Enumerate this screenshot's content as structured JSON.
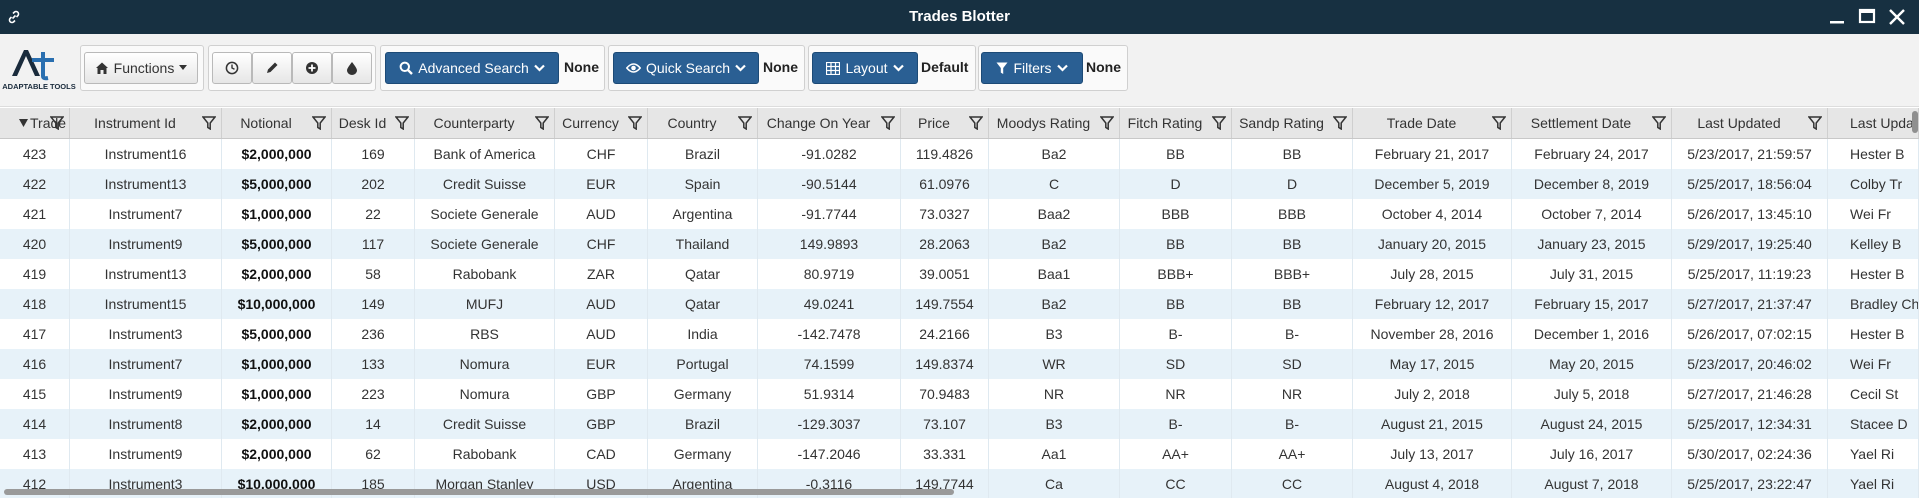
{
  "window": {
    "title": "Trades Blotter"
  },
  "toolbar": {
    "logo_text": "ADAPTABLE TOOLS",
    "functions_label": "Functions",
    "advanced_search_label": "Advanced Search",
    "advanced_search_value": "None",
    "quick_search_label": "Quick Search",
    "quick_search_value": "None",
    "layout_label": "Layout",
    "layout_value": "Default",
    "filters_label": "Filters",
    "filters_value": "None",
    "accent_color": "#2a5f93"
  },
  "grid": {
    "columns": [
      {
        "key": "trade_id",
        "label": "Trade Id",
        "sorted": "desc"
      },
      {
        "key": "instrument_id",
        "label": "Instrument Id"
      },
      {
        "key": "notional",
        "label": "Notional"
      },
      {
        "key": "desk_id",
        "label": "Desk Id"
      },
      {
        "key": "counterparty",
        "label": "Counterparty"
      },
      {
        "key": "currency",
        "label": "Currency"
      },
      {
        "key": "country",
        "label": "Country"
      },
      {
        "key": "change_on_year",
        "label": "Change On Year"
      },
      {
        "key": "price",
        "label": "Price"
      },
      {
        "key": "moodys_rating",
        "label": "Moodys Rating"
      },
      {
        "key": "fitch_rating",
        "label": "Fitch Rating"
      },
      {
        "key": "sandp_rating",
        "label": "Sandp Rating"
      },
      {
        "key": "trade_date",
        "label": "Trade Date"
      },
      {
        "key": "settlement_date",
        "label": "Settlement Date"
      },
      {
        "key": "last_updated",
        "label": "Last Updated"
      },
      {
        "key": "last_updated_by",
        "label": "Last Upda"
      }
    ],
    "rows": [
      [
        "423",
        "Instrument16",
        "$2,000,000",
        "169",
        "Bank of America",
        "CHF",
        "Brazil",
        "-91.0282",
        "119.4826",
        "Ba2",
        "BB",
        "BB",
        "February 21, 2017",
        "February 24, 2017",
        "5/23/2017, 21:59:57",
        "Hester B"
      ],
      [
        "422",
        "Instrument13",
        "$5,000,000",
        "202",
        "Credit Suisse",
        "EUR",
        "Spain",
        "-90.5144",
        "61.0976",
        "C",
        "D",
        "D",
        "December 5, 2019",
        "December 8, 2019",
        "5/25/2017, 18:56:04",
        "Colby Tr"
      ],
      [
        "421",
        "Instrument7",
        "$1,000,000",
        "22",
        "Societe Generale",
        "AUD",
        "Argentina",
        "-91.7744",
        "73.0327",
        "Baa2",
        "BBB",
        "BBB",
        "October 4, 2014",
        "October 7, 2014",
        "5/26/2017, 13:45:10",
        "Wei Fr"
      ],
      [
        "420",
        "Instrument9",
        "$5,000,000",
        "117",
        "Societe Generale",
        "CHF",
        "Thailand",
        "149.9893",
        "28.2063",
        "Ba2",
        "BB",
        "BB",
        "January 20, 2015",
        "January 23, 2015",
        "5/29/2017, 19:25:40",
        "Kelley B"
      ],
      [
        "419",
        "Instrument13",
        "$2,000,000",
        "58",
        "Rabobank",
        "ZAR",
        "Qatar",
        "80.9719",
        "39.0051",
        "Baa1",
        "BBB+",
        "BBB+",
        "July 28, 2015",
        "July 31, 2015",
        "5/25/2017, 11:19:23",
        "Hester B"
      ],
      [
        "418",
        "Instrument15",
        "$10,000,000",
        "149",
        "MUFJ",
        "AUD",
        "Qatar",
        "49.0241",
        "149.7554",
        "Ba2",
        "BB",
        "BB",
        "February 12, 2017",
        "February 15, 2017",
        "5/27/2017, 21:37:47",
        "Bradley Ch"
      ],
      [
        "417",
        "Instrument3",
        "$5,000,000",
        "236",
        "RBS",
        "AUD",
        "India",
        "-142.7478",
        "24.2166",
        "B3",
        "B-",
        "B-",
        "November 28, 2016",
        "December 1, 2016",
        "5/26/2017, 07:02:15",
        "Hester B"
      ],
      [
        "416",
        "Instrument7",
        "$1,000,000",
        "133",
        "Nomura",
        "EUR",
        "Portugal",
        "74.1599",
        "149.8374",
        "WR",
        "SD",
        "SD",
        "May 17, 2015",
        "May 20, 2015",
        "5/23/2017, 20:46:02",
        "Wei Fr"
      ],
      [
        "415",
        "Instrument9",
        "$1,000,000",
        "223",
        "Nomura",
        "GBP",
        "Germany",
        "51.9314",
        "70.9483",
        "NR",
        "NR",
        "NR",
        "July 2, 2018",
        "July 5, 2018",
        "5/27/2017, 21:46:28",
        "Cecil St"
      ],
      [
        "414",
        "Instrument8",
        "$2,000,000",
        "14",
        "Credit Suisse",
        "GBP",
        "Brazil",
        "-129.3037",
        "73.107",
        "B3",
        "B-",
        "B-",
        "August 21, 2015",
        "August 24, 2015",
        "5/25/2017, 12:34:31",
        "Stacee D"
      ],
      [
        "413",
        "Instrument9",
        "$2,000,000",
        "62",
        "Rabobank",
        "CAD",
        "Germany",
        "-147.2046",
        "33.331",
        "Aa1",
        "AA+",
        "AA+",
        "July 13, 2017",
        "July 16, 2017",
        "5/30/2017, 02:24:36",
        "Yael Ri"
      ],
      [
        "412",
        "Instrument3",
        "$10,000,000",
        "185",
        "Morgan Stanley",
        "USD",
        "Argentina",
        "-0.3116",
        "149.7744",
        "Ca",
        "CC",
        "CC",
        "August 4, 2018",
        "August 7, 2018",
        "5/25/2017, 23:22:47",
        "Yael Ri"
      ]
    ]
  }
}
